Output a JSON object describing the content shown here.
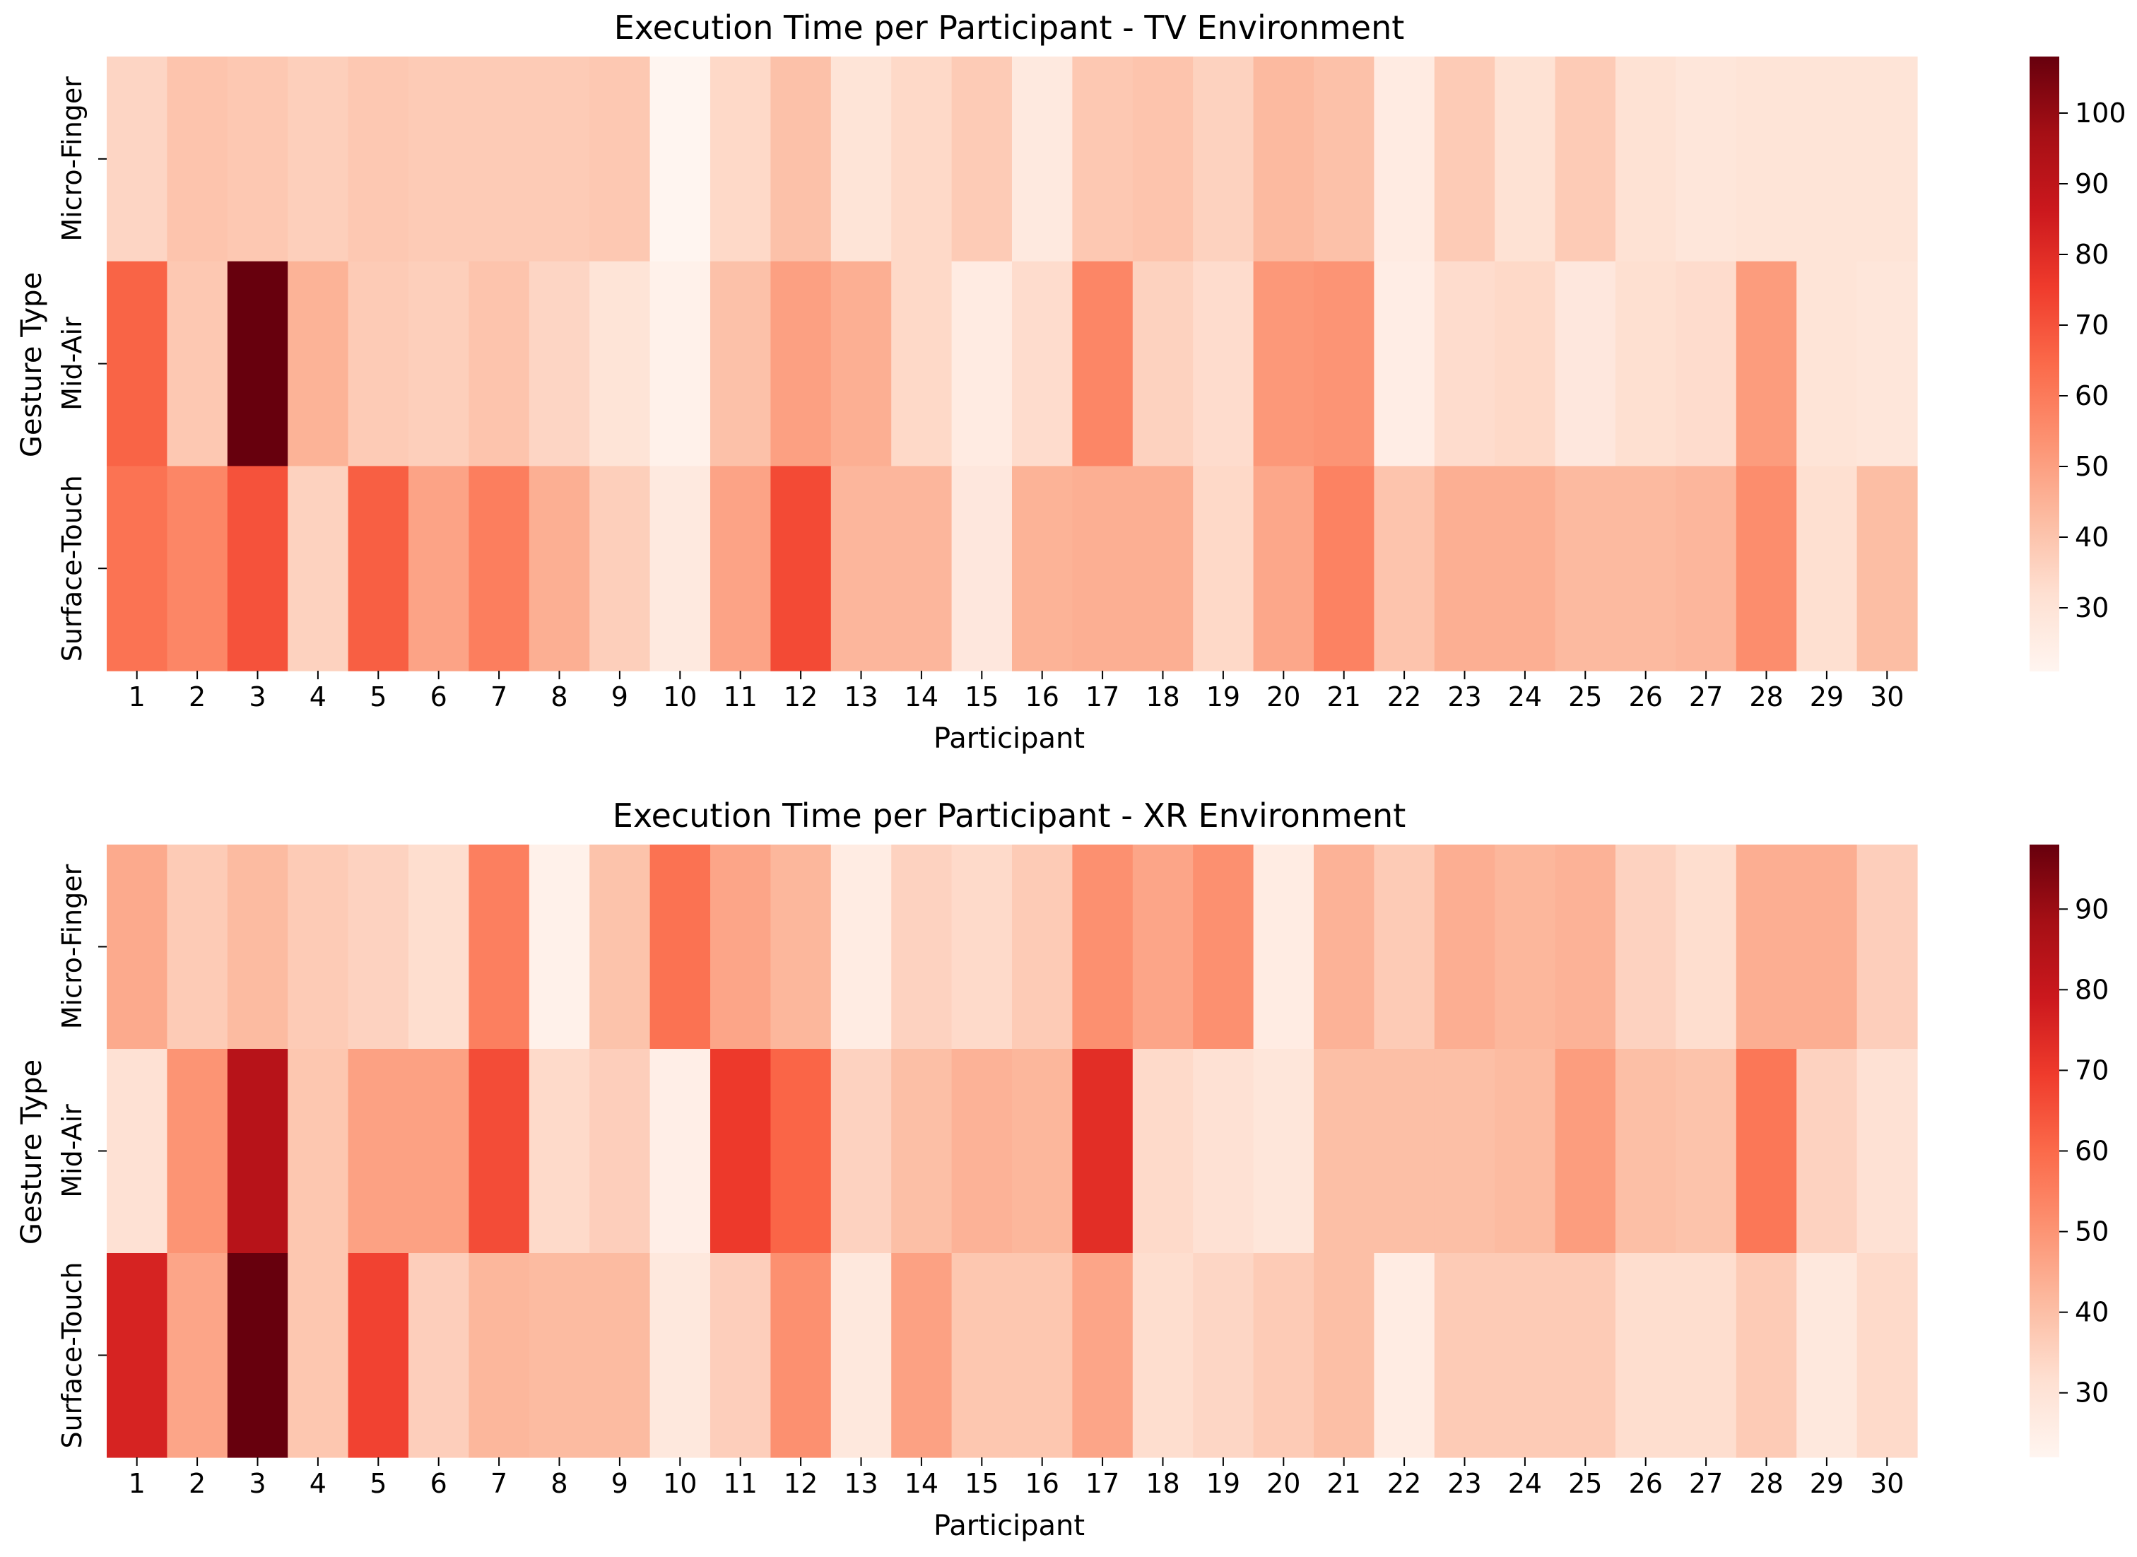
{
  "chart_data": [
    {
      "type": "heatmap",
      "title": "Execution Time per Participant - TV Environment",
      "xlabel": "Participant",
      "ylabel": "Gesture Type",
      "categories": [
        "1",
        "2",
        "3",
        "4",
        "5",
        "6",
        "7",
        "8",
        "9",
        "10",
        "11",
        "12",
        "13",
        "14",
        "15",
        "16",
        "17",
        "18",
        "19",
        "20",
        "21",
        "22",
        "23",
        "24",
        "25",
        "26",
        "27",
        "28",
        "29",
        "30"
      ],
      "rows": [
        "Micro-Finger",
        "Mid-Air",
        "Surface-Touch"
      ],
      "values": [
        [
          35,
          40,
          39,
          37,
          39,
          38,
          38,
          38,
          39,
          21,
          34,
          41,
          30,
          34,
          38,
          27,
          39,
          40,
          36,
          43,
          41,
          26,
          38,
          31,
          38,
          31,
          29,
          30,
          30,
          30
        ],
        [
          66,
          39,
          108,
          45,
          38,
          37,
          40,
          35,
          30,
          23,
          41,
          50,
          46,
          34,
          26,
          33,
          57,
          36,
          33,
          52,
          53,
          25,
          33,
          34,
          28,
          32,
          33,
          51,
          30,
          29
        ],
        [
          62,
          57,
          70,
          36,
          67,
          49,
          59,
          46,
          37,
          27,
          49,
          72,
          44,
          44,
          28,
          45,
          46,
          46,
          34,
          48,
          58,
          40,
          46,
          46,
          43,
          43,
          44,
          55,
          32,
          42
        ]
      ],
      "colorbar": {
        "min": 21,
        "max": 108,
        "ticks": [
          30,
          40,
          50,
          60,
          70,
          80,
          90,
          100
        ]
      },
      "colormap": "Reds"
    },
    {
      "type": "heatmap",
      "title": "Execution Time per Participant - XR Environment",
      "xlabel": "Participant",
      "ylabel": "Gesture Type",
      "categories": [
        "1",
        "2",
        "3",
        "4",
        "5",
        "6",
        "7",
        "8",
        "9",
        "10",
        "11",
        "12",
        "13",
        "14",
        "15",
        "16",
        "17",
        "18",
        "19",
        "20",
        "21",
        "22",
        "23",
        "24",
        "25",
        "26",
        "27",
        "28",
        "29",
        "30"
      ],
      "rows": [
        "Micro-Finger",
        "Mid-Air",
        "Surface-Touch"
      ],
      "values": [
        [
          45,
          37,
          41,
          37,
          35,
          32,
          55,
          24,
          39,
          58,
          46,
          42,
          26,
          35,
          33,
          37,
          51,
          46,
          51,
          26,
          43,
          37,
          44,
          42,
          43,
          35,
          32,
          44,
          44,
          36
        ],
        [
          31,
          50,
          84,
          38,
          47,
          47,
          66,
          33,
          36,
          25,
          70,
          61,
          35,
          40,
          43,
          42,
          73,
          33,
          31,
          29,
          40,
          40,
          40,
          41,
          48,
          40,
          39,
          57,
          35,
          31
        ],
        [
          76,
          46,
          98,
          38,
          68,
          36,
          42,
          41,
          41,
          28,
          36,
          51,
          28,
          47,
          38,
          38,
          46,
          32,
          34,
          37,
          40,
          26,
          37,
          37,
          37,
          32,
          32,
          37,
          28,
          33
        ]
      ],
      "colorbar": {
        "min": 22,
        "max": 98,
        "ticks": [
          30,
          40,
          50,
          60,
          70,
          80,
          90
        ]
      },
      "colormap": "Reds"
    }
  ]
}
